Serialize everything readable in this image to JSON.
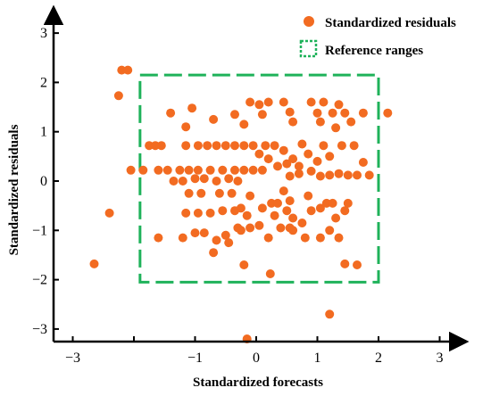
{
  "chart_data": {
    "type": "scatter",
    "xlabel": "Standardized forecasts",
    "ylabel": "Standardized residuals",
    "xlim": [
      -3.3,
      3.3
    ],
    "ylim": [
      -3.3,
      3.3
    ],
    "xticks": [
      -3,
      -2,
      -1,
      0,
      1,
      2,
      3
    ],
    "yticks": [
      -3,
      -2,
      -1,
      0,
      1,
      2,
      3
    ],
    "xtick_labels": [
      "−3",
      "",
      "−1",
      "0",
      "1",
      "2",
      "3"
    ],
    "ytick_labels": [
      "−3",
      "−2",
      "−1",
      "0",
      "1",
      "2",
      "3"
    ],
    "grid": false,
    "legend_position": "top-right",
    "legend": [
      {
        "label": "Standardized residuals",
        "marker": "circle",
        "color": "#f26b21"
      },
      {
        "label": "Reference ranges",
        "marker": "dashed-square",
        "color": "#1fb25a"
      }
    ],
    "reference_range": {
      "x": [
        -1.9,
        2.0
      ],
      "y": [
        -2.05,
        2.15
      ],
      "color": "#1fb25a",
      "style": "dashed"
    },
    "series": [
      {
        "name": "Standardized residuals",
        "color": "#f26b21",
        "points": [
          [
            -2.65,
            -1.68
          ],
          [
            -2.4,
            -0.65
          ],
          [
            -2.25,
            1.73
          ],
          [
            -2.2,
            2.25
          ],
          [
            -2.1,
            2.25
          ],
          [
            -2.05,
            0.22
          ],
          [
            2.15,
            1.38
          ],
          [
            1.2,
            -2.7
          ],
          [
            -0.15,
            -3.2
          ],
          [
            0.23,
            -1.88
          ],
          [
            -0.2,
            -1.7
          ],
          [
            1.45,
            -1.68
          ],
          [
            1.65,
            -1.7
          ],
          [
            -1.85,
            0.22
          ],
          [
            -1.75,
            0.72
          ],
          [
            -1.65,
            0.72
          ],
          [
            -1.6,
            0.22
          ],
          [
            -1.55,
            0.72
          ],
          [
            -1.45,
            0.22
          ],
          [
            -1.4,
            1.38
          ],
          [
            -1.15,
            1.1
          ],
          [
            -1.05,
            1.48
          ],
          [
            -0.7,
            1.25
          ],
          [
            -0.35,
            1.35
          ],
          [
            -0.2,
            1.15
          ],
          [
            -0.1,
            1.6
          ],
          [
            0.05,
            1.55
          ],
          [
            0.1,
            1.35
          ],
          [
            0.2,
            1.6
          ],
          [
            0.45,
            1.6
          ],
          [
            0.55,
            1.4
          ],
          [
            0.6,
            1.2
          ],
          [
            0.9,
            1.6
          ],
          [
            1.0,
            1.38
          ],
          [
            1.1,
            1.6
          ],
          [
            1.25,
            1.38
          ],
          [
            1.35,
            1.55
          ],
          [
            1.45,
            1.38
          ],
          [
            1.55,
            1.2
          ],
          [
            1.75,
            1.38
          ],
          [
            1.3,
            1.08
          ],
          [
            1.05,
            1.2
          ],
          [
            1.6,
            0.72
          ],
          [
            1.75,
            0.38
          ],
          [
            1.85,
            0.12
          ],
          [
            1.65,
            0.12
          ],
          [
            1.5,
            0.12
          ],
          [
            1.4,
            0.72
          ],
          [
            1.2,
            0.5
          ],
          [
            1.1,
            0.72
          ],
          [
            1.0,
            0.4
          ],
          [
            0.85,
            0.55
          ],
          [
            0.7,
            0.3
          ],
          [
            0.75,
            0.75
          ],
          [
            0.6,
            0.45
          ],
          [
            0.5,
            0.35
          ],
          [
            0.45,
            0.62
          ],
          [
            0.35,
            0.3
          ],
          [
            0.3,
            0.72
          ],
          [
            0.2,
            0.45
          ],
          [
            0.15,
            0.72
          ],
          [
            0.05,
            0.55
          ],
          [
            -0.05,
            0.72
          ],
          [
            -0.2,
            0.72
          ],
          [
            -0.35,
            0.72
          ],
          [
            -0.5,
            0.72
          ],
          [
            -0.65,
            0.72
          ],
          [
            -0.8,
            0.72
          ],
          [
            -0.95,
            0.72
          ],
          [
            -1.15,
            0.72
          ],
          [
            -1.25,
            0.22
          ],
          [
            -1.1,
            0.22
          ],
          [
            -0.95,
            0.22
          ],
          [
            -0.75,
            0.22
          ],
          [
            -0.55,
            0.22
          ],
          [
            -0.35,
            0.22
          ],
          [
            -0.2,
            0.22
          ],
          [
            -0.05,
            0.22
          ],
          [
            0.1,
            0.22
          ],
          [
            -1.35,
            0.0
          ],
          [
            -1.2,
            0.0
          ],
          [
            -1.0,
            0.05
          ],
          [
            -0.85,
            0.05
          ],
          [
            -0.65,
            0.0
          ],
          [
            -0.45,
            0.05
          ],
          [
            -0.3,
            0.0
          ],
          [
            -0.6,
            -0.25
          ],
          [
            -0.9,
            -0.25
          ],
          [
            -1.1,
            -0.25
          ],
          [
            -0.4,
            -0.25
          ],
          [
            1.05,
            0.1
          ],
          [
            1.2,
            0.12
          ],
          [
            1.35,
            0.15
          ],
          [
            0.9,
            0.2
          ],
          [
            0.7,
            0.15
          ],
          [
            0.55,
            0.1
          ],
          [
            -1.15,
            -0.65
          ],
          [
            -0.95,
            -0.65
          ],
          [
            -0.75,
            -0.65
          ],
          [
            -0.55,
            -0.6
          ],
          [
            -0.35,
            -0.6
          ],
          [
            -0.25,
            -0.55
          ],
          [
            -0.15,
            -0.7
          ],
          [
            0.1,
            -0.55
          ],
          [
            0.25,
            -0.45
          ],
          [
            0.35,
            -0.45
          ],
          [
            0.5,
            -0.6
          ],
          [
            0.6,
            -0.75
          ],
          [
            0.75,
            -0.85
          ],
          [
            0.9,
            -0.6
          ],
          [
            1.05,
            -0.55
          ],
          [
            1.15,
            -0.45
          ],
          [
            1.25,
            -0.45
          ],
          [
            1.3,
            -0.75
          ],
          [
            1.2,
            -1.0
          ],
          [
            1.35,
            -1.15
          ],
          [
            1.05,
            -1.15
          ],
          [
            0.8,
            -1.15
          ],
          [
            0.55,
            -0.95
          ],
          [
            0.4,
            -0.95
          ],
          [
            0.2,
            -1.15
          ],
          [
            0.05,
            -0.9
          ],
          [
            -0.1,
            -0.95
          ],
          [
            -0.3,
            -0.95
          ],
          [
            -0.5,
            -1.1
          ],
          [
            -0.65,
            -1.2
          ],
          [
            -0.85,
            -1.05
          ],
          [
            -1.0,
            -1.05
          ],
          [
            -1.2,
            -1.15
          ],
          [
            -1.6,
            -1.15
          ],
          [
            -0.7,
            -1.45
          ],
          [
            -0.45,
            -1.25
          ],
          [
            -0.25,
            -1.0
          ],
          [
            0.45,
            -0.2
          ],
          [
            0.55,
            -0.4
          ],
          [
            0.85,
            -0.3
          ],
          [
            1.45,
            -0.6
          ],
          [
            1.5,
            -0.45
          ],
          [
            0.3,
            -0.7
          ],
          [
            -0.1,
            -0.3
          ],
          [
            0.6,
            -1.0
          ]
        ]
      }
    ]
  }
}
